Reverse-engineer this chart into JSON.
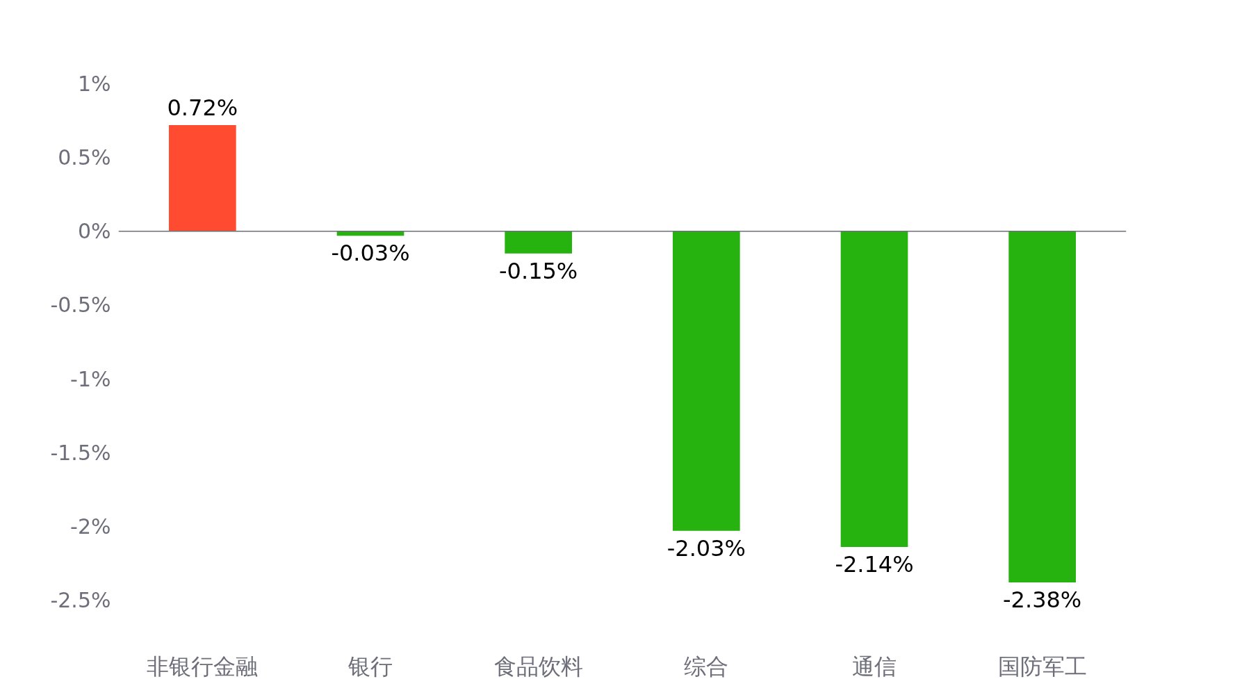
{
  "chart_data": {
    "type": "bar",
    "categories": [
      "非银行金融",
      "银行",
      "食品饮料",
      "综合",
      "通信",
      "国防军工"
    ],
    "values": [
      0.72,
      -0.03,
      -0.15,
      -2.03,
      -2.14,
      -2.38
    ],
    "colors": [
      "#ff4b30",
      "#27b30f",
      "#27b30f",
      "#27b30f",
      "#27b30f",
      "#27b30f"
    ],
    "value_labels": [
      "0.72%",
      "-0.03%",
      "-0.15%",
      "-2.03%",
      "-2.14%",
      "-2.38%"
    ],
    "ylim": [
      -2.5,
      1
    ],
    "yticks": [
      {
        "value": 1,
        "label": "1%"
      },
      {
        "value": 0.5,
        "label": "0.5%"
      },
      {
        "value": 0,
        "label": "0%"
      },
      {
        "value": -0.5,
        "label": "-0.5%"
      },
      {
        "value": -1,
        "label": "-1%"
      },
      {
        "value": -1.5,
        "label": "-1.5%"
      },
      {
        "value": -2,
        "label": "-2%"
      },
      {
        "value": -2.5,
        "label": "-2.5%"
      }
    ],
    "ref_lines": [
      {
        "axis": "y",
        "value": 0,
        "color": "#6e7079"
      }
    ],
    "grid": false
  }
}
